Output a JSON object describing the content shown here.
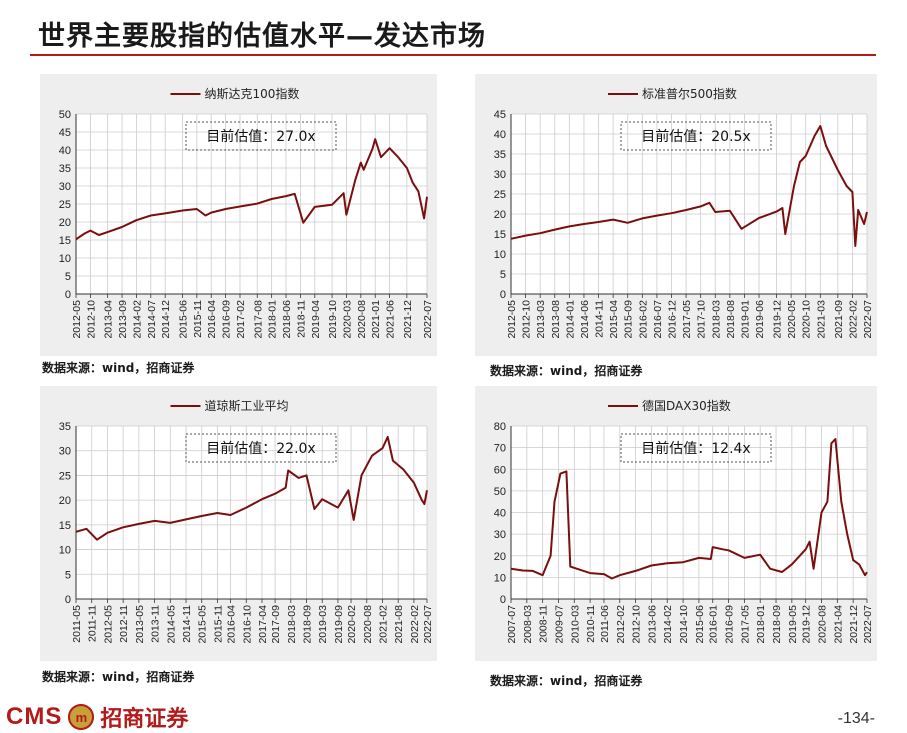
{
  "page": {
    "title": "世界主要股指的估值水平—发达市场",
    "page_number": "-134-",
    "logo_text": "CMS",
    "logo_emblem": "m",
    "logo_cn": "招商证券",
    "accent_color": "#b31b1b",
    "line_color": "#7a0f0f"
  },
  "chart_data": [
    {
      "type": "line",
      "legend": "纳斯达克100指数",
      "annotation": "目前估值：27.0x",
      "source": "数据来源：wind，招商证券",
      "ylim": [
        0,
        50
      ],
      "yticks": [
        0,
        5,
        10,
        15,
        20,
        25,
        30,
        35,
        40,
        45,
        50
      ],
      "x_start": "2012-05",
      "x_end": "2022-07",
      "xticks": [
        "2012-05",
        "2012-10",
        "2013-04",
        "2013-09",
        "2014-02",
        "2014-07",
        "2014-12",
        "2015-06",
        "2015-11",
        "2016-04",
        "2016-09",
        "2017-02",
        "2017-08",
        "2018-01",
        "2018-06",
        "2018-11",
        "2019-04",
        "2019-10",
        "2020-03",
        "2020-08",
        "2021-01",
        "2021-06",
        "2021-12",
        "2022-07"
      ],
      "points": [
        [
          "2012-05",
          15.2
        ],
        [
          "2012-08",
          16.8
        ],
        [
          "2012-10",
          17.6
        ],
        [
          "2013-01",
          16.4
        ],
        [
          "2013-04",
          17.2
        ],
        [
          "2013-09",
          18.6
        ],
        [
          "2014-02",
          20.5
        ],
        [
          "2014-07",
          21.8
        ],
        [
          "2014-12",
          22.4
        ],
        [
          "2015-06",
          23.2
        ],
        [
          "2015-11",
          23.6
        ],
        [
          "2016-02",
          21.8
        ],
        [
          "2016-04",
          22.6
        ],
        [
          "2016-09",
          23.6
        ],
        [
          "2017-02",
          24.3
        ],
        [
          "2017-08",
          25.1
        ],
        [
          "2018-01",
          26.4
        ],
        [
          "2018-06",
          27.2
        ],
        [
          "2018-09",
          27.8
        ],
        [
          "2018-12",
          19.8
        ],
        [
          "2019-04",
          24.2
        ],
        [
          "2019-10",
          24.8
        ],
        [
          "2020-02",
          28.0
        ],
        [
          "2020-03",
          22.0
        ],
        [
          "2020-06",
          31.5
        ],
        [
          "2020-08",
          36.5
        ],
        [
          "2020-09",
          34.5
        ],
        [
          "2020-12",
          40.2
        ],
        [
          "2021-01",
          43.0
        ],
        [
          "2021-03",
          38.0
        ],
        [
          "2021-06",
          40.5
        ],
        [
          "2021-09",
          38.0
        ],
        [
          "2021-12",
          35.0
        ],
        [
          "2022-02",
          31.0
        ],
        [
          "2022-04",
          28.5
        ],
        [
          "2022-06",
          21.0
        ],
        [
          "2022-07",
          27.0
        ]
      ]
    },
    {
      "type": "line",
      "legend": "标准普尔500指数",
      "annotation": "目前估值：20.5x",
      "source": "数据来源：wind，招商证券",
      "ylim": [
        0,
        45
      ],
      "yticks": [
        0,
        5,
        10,
        15,
        20,
        25,
        30,
        35,
        40,
        45
      ],
      "x_start": "2012-05",
      "x_end": "2022-07",
      "xticks": [
        "2012-05",
        "2012-10",
        "2013-03",
        "2013-08",
        "2014-01",
        "2014-06",
        "2014-11",
        "2015-04",
        "2015-09",
        "2016-02",
        "2016-07",
        "2016-12",
        "2017-05",
        "2017-10",
        "2018-03",
        "2018-08",
        "2019-01",
        "2019-06",
        "2019-12",
        "2020-05",
        "2020-10",
        "2021-03",
        "2021-09",
        "2022-02",
        "2022-07"
      ],
      "points": [
        [
          "2012-05",
          13.8
        ],
        [
          "2012-10",
          14.6
        ],
        [
          "2013-03",
          15.2
        ],
        [
          "2013-08",
          16.1
        ],
        [
          "2014-01",
          16.9
        ],
        [
          "2014-06",
          17.5
        ],
        [
          "2014-11",
          18.0
        ],
        [
          "2015-04",
          18.6
        ],
        [
          "2015-09",
          17.8
        ],
        [
          "2016-02",
          18.9
        ],
        [
          "2016-07",
          19.6
        ],
        [
          "2016-12",
          20.2
        ],
        [
          "2017-05",
          21.0
        ],
        [
          "2017-10",
          21.9
        ],
        [
          "2018-01",
          22.8
        ],
        [
          "2018-03",
          20.5
        ],
        [
          "2018-08",
          20.8
        ],
        [
          "2018-12",
          16.3
        ],
        [
          "2019-06",
          19.0
        ],
        [
          "2019-12",
          20.6
        ],
        [
          "2020-02",
          21.5
        ],
        [
          "2020-03",
          15.0
        ],
        [
          "2020-06",
          27.0
        ],
        [
          "2020-08",
          33.0
        ],
        [
          "2020-10",
          34.5
        ],
        [
          "2021-01",
          39.5
        ],
        [
          "2021-03",
          42.0
        ],
        [
          "2021-05",
          37.0
        ],
        [
          "2021-09",
          31.0
        ],
        [
          "2021-12",
          27.0
        ],
        [
          "2022-02",
          25.5
        ],
        [
          "2022-03",
          12.0
        ],
        [
          "2022-04",
          21.0
        ],
        [
          "2022-06",
          17.5
        ],
        [
          "2022-07",
          20.5
        ]
      ]
    },
    {
      "type": "line",
      "legend": "道琼斯工业平均",
      "annotation": "目前估值：22.0x",
      "source": "数据来源：wind，招商证券",
      "ylim": [
        0,
        35
      ],
      "yticks": [
        0,
        5,
        10,
        15,
        20,
        25,
        30,
        35
      ],
      "x_start": "2011-05",
      "x_end": "2022-07",
      "xticks": [
        "2011-05",
        "2011-11",
        "2012-05",
        "2012-11",
        "2013-05",
        "2013-11",
        "2014-05",
        "2014-11",
        "2015-05",
        "2015-11",
        "2016-04",
        "2016-10",
        "2017-04",
        "2017-09",
        "2018-03",
        "2018-09",
        "2019-03",
        "2019-09",
        "2020-02",
        "2020-08",
        "2021-02",
        "2021-08",
        "2022-02",
        "2022-07"
      ],
      "points": [
        [
          "2011-05",
          13.6
        ],
        [
          "2011-09",
          14.2
        ],
        [
          "2012-01",
          12.0
        ],
        [
          "2012-05",
          13.4
        ],
        [
          "2012-11",
          14.5
        ],
        [
          "2013-05",
          15.2
        ],
        [
          "2013-11",
          15.8
        ],
        [
          "2014-05",
          15.4
        ],
        [
          "2014-11",
          16.1
        ],
        [
          "2015-05",
          16.8
        ],
        [
          "2015-11",
          17.4
        ],
        [
          "2016-04",
          17.0
        ],
        [
          "2016-10",
          18.5
        ],
        [
          "2017-04",
          20.2
        ],
        [
          "2017-09",
          21.3
        ],
        [
          "2018-01",
          22.5
        ],
        [
          "2018-02",
          26.0
        ],
        [
          "2018-06",
          24.5
        ],
        [
          "2018-09",
          25.0
        ],
        [
          "2018-12",
          18.2
        ],
        [
          "2019-03",
          20.2
        ],
        [
          "2019-09",
          18.5
        ],
        [
          "2020-01",
          22.0
        ],
        [
          "2020-03",
          16.0
        ],
        [
          "2020-06",
          25.0
        ],
        [
          "2020-10",
          29.0
        ],
        [
          "2021-02",
          30.5
        ],
        [
          "2021-04",
          32.8
        ],
        [
          "2021-06",
          28.0
        ],
        [
          "2021-10",
          26.2
        ],
        [
          "2022-02",
          23.5
        ],
        [
          "2022-05",
          20.0
        ],
        [
          "2022-06",
          19.2
        ],
        [
          "2022-07",
          22.0
        ]
      ]
    },
    {
      "type": "line",
      "legend": "德国DAX30指数",
      "annotation": "目前估值：12.4x",
      "source": "数据来源：wind，招商证券",
      "ylim": [
        0,
        80
      ],
      "yticks": [
        0,
        10,
        20,
        30,
        40,
        50,
        60,
        70,
        80
      ],
      "x_start": "2007-07",
      "x_end": "2022-07",
      "xticks": [
        "2007-07",
        "2008-03",
        "2008-11",
        "2009-07",
        "2010-03",
        "2010-11",
        "2011-06",
        "2012-02",
        "2012-10",
        "2013-06",
        "2014-02",
        "2014-10",
        "2015-06",
        "2016-01",
        "2016-09",
        "2017-05",
        "2018-01",
        "2018-09",
        "2019-05",
        "2019-12",
        "2020-08",
        "2021-04",
        "2021-12",
        "2022-07"
      ],
      "points": [
        [
          "2007-07",
          14.0
        ],
        [
          "2008-01",
          13.2
        ],
        [
          "2008-06",
          13.0
        ],
        [
          "2008-11",
          11.0
        ],
        [
          "2009-03",
          20.0
        ],
        [
          "2009-05",
          45.0
        ],
        [
          "2009-08",
          58.0
        ],
        [
          "2009-11",
          59.0
        ],
        [
          "2010-01",
          15.0
        ],
        [
          "2010-06",
          13.5
        ],
        [
          "2010-11",
          12.0
        ],
        [
          "2011-06",
          11.5
        ],
        [
          "2011-10",
          9.5
        ],
        [
          "2012-02",
          11.0
        ],
        [
          "2012-10",
          13.0
        ],
        [
          "2013-06",
          15.5
        ],
        [
          "2014-02",
          16.5
        ],
        [
          "2014-10",
          17.0
        ],
        [
          "2015-06",
          19.0
        ],
        [
          "2015-12",
          18.5
        ],
        [
          "2016-01",
          24.0
        ],
        [
          "2016-06",
          23.0
        ],
        [
          "2016-09",
          22.5
        ],
        [
          "2017-05",
          19.0
        ],
        [
          "2018-01",
          20.5
        ],
        [
          "2018-06",
          14.0
        ],
        [
          "2018-12",
          12.5
        ],
        [
          "2019-05",
          16.0
        ],
        [
          "2019-12",
          23.0
        ],
        [
          "2020-02",
          26.5
        ],
        [
          "2020-04",
          14.0
        ],
        [
          "2020-08",
          40.0
        ],
        [
          "2020-11",
          45.0
        ],
        [
          "2021-01",
          72.0
        ],
        [
          "2021-03",
          74.0
        ],
        [
          "2021-06",
          45.0
        ],
        [
          "2021-09",
          30.0
        ],
        [
          "2021-12",
          18.0
        ],
        [
          "2022-03",
          16.0
        ],
        [
          "2022-06",
          11.0
        ],
        [
          "2022-07",
          12.4
        ]
      ]
    }
  ]
}
